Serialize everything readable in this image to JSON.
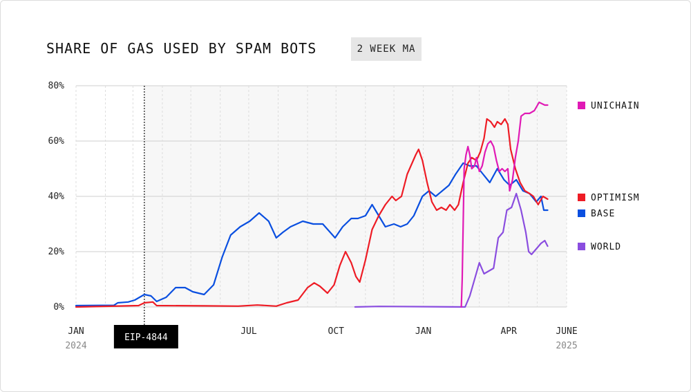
{
  "title": "SHARE OF GAS USED BY SPAM BOTS",
  "badge": "2 WEEK MA",
  "chart_data": {
    "type": "line",
    "title": "SHARE OF GAS USED BY SPAM BOTS",
    "subtitle": "2 WEEK MA",
    "xlabel": "",
    "ylabel": "",
    "x_range": [
      "2024-01-01",
      "2025-06-01"
    ],
    "ylim": [
      0,
      80
    ],
    "y_ticks": [
      "0%",
      "20%",
      "40%",
      "60%",
      "80%"
    ],
    "y_tick_values": [
      0,
      20,
      40,
      60,
      80
    ],
    "x_ticks": [
      {
        "label": "JAN",
        "sub": "2024",
        "x": "2024-01-01"
      },
      {
        "label": "JUL",
        "sub": "",
        "x": "2024-07-01"
      },
      {
        "label": "OCT",
        "sub": "",
        "x": "2024-10-01"
      },
      {
        "label": "JAN",
        "sub": "",
        "x": "2025-01-01"
      },
      {
        "label": "APR",
        "sub": "",
        "x": "2025-04-01"
      },
      {
        "label": "JUNE",
        "sub": "2025",
        "x": "2025-06-01"
      }
    ],
    "annotation": {
      "label": "EIP-4844",
      "x": "2024-03-13"
    },
    "grid": true,
    "legend_placement": "right",
    "series": [
      {
        "name": "UNICHAIN",
        "color": "#e01ab5",
        "points": [
          [
            "2025-02-10",
            0
          ],
          [
            "2025-02-11",
            10
          ],
          [
            "2025-02-13",
            50
          ],
          [
            "2025-02-15",
            55
          ],
          [
            "2025-02-17",
            58
          ],
          [
            "2025-02-19",
            55
          ],
          [
            "2025-02-21",
            50
          ],
          [
            "2025-02-24",
            51
          ],
          [
            "2025-02-26",
            54
          ],
          [
            "2025-03-01",
            49
          ],
          [
            "2025-03-04",
            51
          ],
          [
            "2025-03-07",
            56
          ],
          [
            "2025-03-10",
            59
          ],
          [
            "2025-03-13",
            60
          ],
          [
            "2025-03-16",
            58
          ],
          [
            "2025-03-19",
            53
          ],
          [
            "2025-03-22",
            49
          ],
          [
            "2025-03-25",
            50
          ],
          [
            "2025-03-28",
            49
          ],
          [
            "2025-03-31",
            50
          ],
          [
            "2025-04-02",
            42
          ],
          [
            "2025-04-05",
            46
          ],
          [
            "2025-04-08",
            54
          ],
          [
            "2025-04-11",
            60
          ],
          [
            "2025-04-14",
            69
          ],
          [
            "2025-04-18",
            70
          ],
          [
            "2025-04-23",
            70
          ],
          [
            "2025-04-28",
            71
          ],
          [
            "2025-05-03",
            74
          ],
          [
            "2025-05-09",
            73
          ],
          [
            "2025-05-12",
            73
          ]
        ]
      },
      {
        "name": "OPTIMISM",
        "color": "#ee1c25",
        "points": [
          [
            "2024-01-01",
            0
          ],
          [
            "2024-03-07",
            0.5
          ],
          [
            "2024-03-13",
            1.5
          ],
          [
            "2024-03-22",
            1.8
          ],
          [
            "2024-03-26",
            0.5
          ],
          [
            "2024-05-15",
            0.4
          ],
          [
            "2024-06-20",
            0.3
          ],
          [
            "2024-07-10",
            0.7
          ],
          [
            "2024-07-30",
            0.3
          ],
          [
            "2024-08-10",
            1.5
          ],
          [
            "2024-08-22",
            2.5
          ],
          [
            "2024-09-01",
            7
          ],
          [
            "2024-09-08",
            8.7
          ],
          [
            "2024-09-14",
            7.5
          ],
          [
            "2024-09-22",
            5
          ],
          [
            "2024-09-29",
            8
          ],
          [
            "2024-10-05",
            15
          ],
          [
            "2024-10-11",
            20
          ],
          [
            "2024-10-17",
            16
          ],
          [
            "2024-10-22",
            11
          ],
          [
            "2024-10-26",
            9
          ],
          [
            "2024-11-01",
            17
          ],
          [
            "2024-11-08",
            28
          ],
          [
            "2024-11-15",
            33
          ],
          [
            "2024-11-22",
            37
          ],
          [
            "2024-11-29",
            40
          ],
          [
            "2024-12-03",
            38.5
          ],
          [
            "2024-12-09",
            40
          ],
          [
            "2024-12-15",
            48
          ],
          [
            "2024-12-24",
            55
          ],
          [
            "2024-12-27",
            57
          ],
          [
            "2024-12-31",
            53
          ],
          [
            "2025-01-05",
            45
          ],
          [
            "2025-01-10",
            38
          ],
          [
            "2025-01-15",
            35
          ],
          [
            "2025-01-20",
            36
          ],
          [
            "2025-01-25",
            35
          ],
          [
            "2025-01-29",
            37
          ],
          [
            "2025-02-03",
            35
          ],
          [
            "2025-02-07",
            37
          ],
          [
            "2025-02-12",
            45
          ],
          [
            "2025-02-17",
            52
          ],
          [
            "2025-02-21",
            54
          ],
          [
            "2025-02-26",
            53
          ],
          [
            "2025-03-02",
            56
          ],
          [
            "2025-03-06",
            61
          ],
          [
            "2025-03-09",
            68
          ],
          [
            "2025-03-13",
            67
          ],
          [
            "2025-03-17",
            65
          ],
          [
            "2025-03-20",
            67
          ],
          [
            "2025-03-24",
            66
          ],
          [
            "2025-03-28",
            68
          ],
          [
            "2025-03-31",
            66
          ],
          [
            "2025-04-03",
            57
          ],
          [
            "2025-04-08",
            50
          ],
          [
            "2025-04-13",
            45
          ],
          [
            "2025-04-18",
            42
          ],
          [
            "2025-04-23",
            41
          ],
          [
            "2025-04-27",
            40
          ],
          [
            "2025-05-02",
            37
          ],
          [
            "2025-05-07",
            40
          ],
          [
            "2025-05-12",
            39
          ]
        ]
      },
      {
        "name": "BASE",
        "color": "#0a4fe0",
        "points": [
          [
            "2024-01-01",
            0.5
          ],
          [
            "2024-02-10",
            0.6
          ],
          [
            "2024-02-14",
            1.5
          ],
          [
            "2024-02-25",
            1.8
          ],
          [
            "2024-03-03",
            2.5
          ],
          [
            "2024-03-13",
            4.5
          ],
          [
            "2024-03-20",
            4
          ],
          [
            "2024-03-26",
            2
          ],
          [
            "2024-04-05",
            3.5
          ],
          [
            "2024-04-15",
            7
          ],
          [
            "2024-04-25",
            7
          ],
          [
            "2024-05-03",
            5.5
          ],
          [
            "2024-05-15",
            4.5
          ],
          [
            "2024-05-25",
            8
          ],
          [
            "2024-06-03",
            18
          ],
          [
            "2024-06-12",
            26
          ],
          [
            "2024-06-22",
            29
          ],
          [
            "2024-07-02",
            31
          ],
          [
            "2024-07-12",
            34
          ],
          [
            "2024-07-22",
            31
          ],
          [
            "2024-07-30",
            25
          ],
          [
            "2024-08-06",
            27
          ],
          [
            "2024-08-14",
            29
          ],
          [
            "2024-08-27",
            31
          ],
          [
            "2024-09-07",
            30
          ],
          [
            "2024-09-17",
            30
          ],
          [
            "2024-09-30",
            25
          ],
          [
            "2024-10-08",
            29
          ],
          [
            "2024-10-17",
            32
          ],
          [
            "2024-10-24",
            32
          ],
          [
            "2024-11-01",
            33
          ],
          [
            "2024-11-08",
            37
          ],
          [
            "2024-11-15",
            33
          ],
          [
            "2024-11-22",
            29
          ],
          [
            "2024-12-01",
            30
          ],
          [
            "2024-12-08",
            29
          ],
          [
            "2024-12-15",
            30
          ],
          [
            "2024-12-22",
            33
          ],
          [
            "2024-12-31",
            40
          ],
          [
            "2025-01-07",
            42
          ],
          [
            "2025-01-14",
            40
          ],
          [
            "2025-01-21",
            42
          ],
          [
            "2025-01-28",
            44
          ],
          [
            "2025-02-04",
            48
          ],
          [
            "2025-02-12",
            52
          ],
          [
            "2025-02-19",
            51
          ],
          [
            "2025-02-26",
            51
          ],
          [
            "2025-03-05",
            48
          ],
          [
            "2025-03-12",
            45
          ],
          [
            "2025-03-20",
            50
          ],
          [
            "2025-03-27",
            46
          ],
          [
            "2025-04-02",
            44
          ],
          [
            "2025-04-09",
            46
          ],
          [
            "2025-04-16",
            42
          ],
          [
            "2025-04-23",
            41
          ],
          [
            "2025-04-30",
            38
          ],
          [
            "2025-05-05",
            40
          ],
          [
            "2025-05-08",
            35
          ],
          [
            "2025-05-12",
            35
          ]
        ]
      },
      {
        "name": "WORLD",
        "color": "#8a4ddf",
        "points": [
          [
            "2024-10-21",
            0
          ],
          [
            "2024-11-15",
            0.2
          ],
          [
            "2025-02-14",
            0
          ],
          [
            "2025-02-19",
            4
          ],
          [
            "2025-02-24",
            10
          ],
          [
            "2025-03-01",
            16
          ],
          [
            "2025-03-06",
            12
          ],
          [
            "2025-03-11",
            13
          ],
          [
            "2025-03-16",
            14
          ],
          [
            "2025-03-21",
            25
          ],
          [
            "2025-03-26",
            27
          ],
          [
            "2025-03-30",
            35
          ],
          [
            "2025-04-04",
            36
          ],
          [
            "2025-04-09",
            41
          ],
          [
            "2025-04-14",
            35
          ],
          [
            "2025-04-19",
            27
          ],
          [
            "2025-04-22",
            20
          ],
          [
            "2025-04-25",
            19
          ],
          [
            "2025-04-30",
            21
          ],
          [
            "2025-05-05",
            23
          ],
          [
            "2025-05-09",
            24
          ],
          [
            "2025-05-12",
            22
          ]
        ]
      }
    ]
  },
  "legend": [
    {
      "name": "UNICHAIN",
      "color": "#e01ab5"
    },
    {
      "name": "OPTIMISM",
      "color": "#ee1c25"
    },
    {
      "name": "BASE",
      "color": "#0a4fe0"
    },
    {
      "name": "WORLD",
      "color": "#8a4ddf"
    }
  ],
  "colors": {
    "plot_shade": "#f7f7f7",
    "grid": "#cfcfcf",
    "annotation_bg": "#000000"
  }
}
